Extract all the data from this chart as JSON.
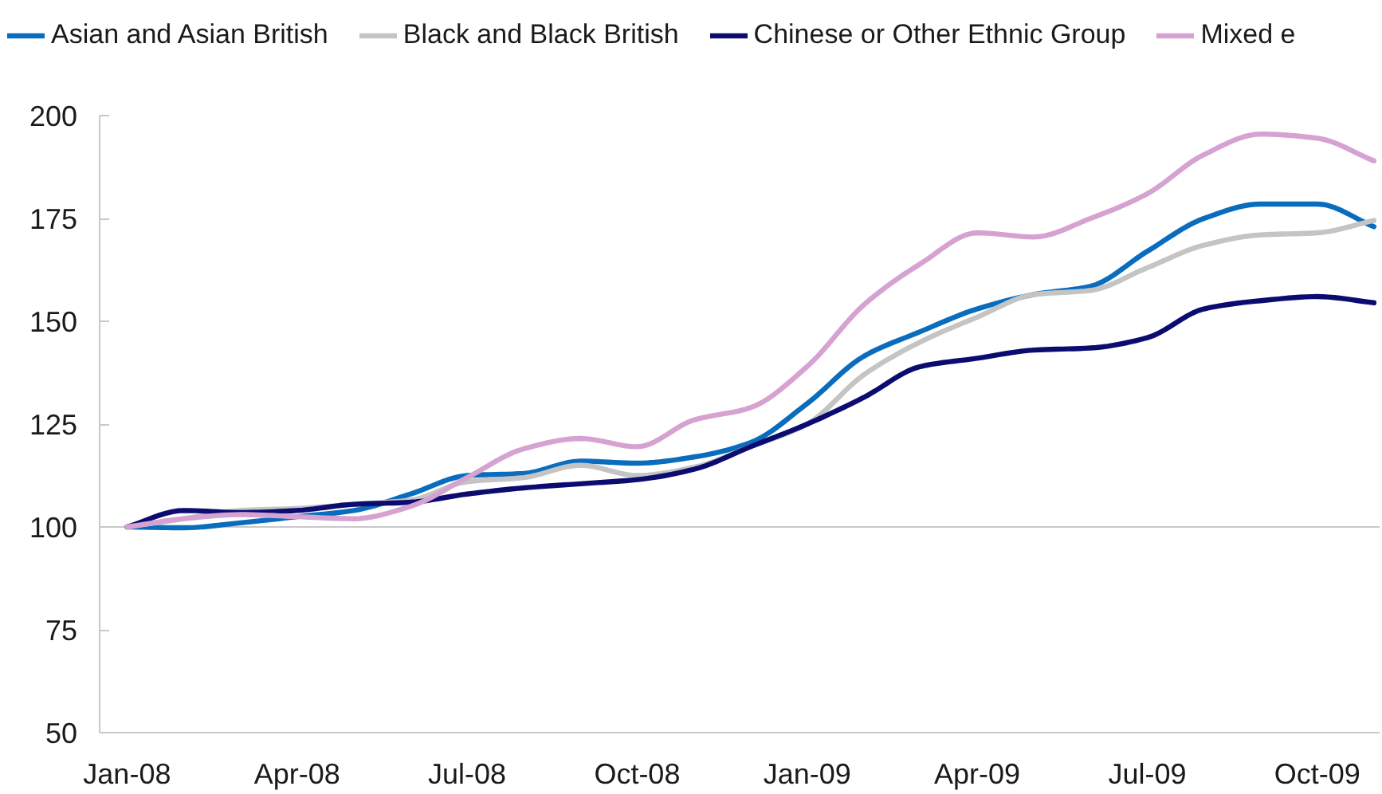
{
  "chart_data": {
    "type": "line",
    "x": [
      "2008-01",
      "2008-02",
      "2008-03",
      "2008-04",
      "2008-05",
      "2008-06",
      "2008-07",
      "2008-08",
      "2008-09",
      "2008-10",
      "2008-11",
      "2008-12",
      "2009-01",
      "2009-02",
      "2009-03",
      "2009-04",
      "2009-05",
      "2009-06",
      "2009-07",
      "2009-08",
      "2009-09",
      "2009-10",
      "2009-11"
    ],
    "series": [
      {
        "name": "Asian and Asian British",
        "color": "#0a6cbd",
        "values": [
          100,
          99.8,
          101,
          102.5,
          104,
          108,
          112.5,
          113,
          116,
          115.5,
          117,
          120.5,
          130,
          141.5,
          147.5,
          153,
          156.5,
          158.5,
          167,
          175,
          178.5,
          178.5,
          173
        ]
      },
      {
        "name": "Black and Black British",
        "color": "#c4c4c4",
        "values": [
          100,
          102,
          104,
          104.5,
          105.5,
          106.5,
          111,
          112,
          115,
          112.5,
          114.5,
          119.5,
          125,
          137,
          145,
          151,
          156.5,
          157.5,
          163,
          168.5,
          171,
          171.5,
          174.5
        ]
      },
      {
        "name": "Chinese or Other Ethnic Group",
        "color": "#0c0c70",
        "values": [
          100,
          104,
          103.5,
          104,
          105.5,
          106,
          108,
          109.5,
          110.5,
          111.5,
          114,
          119.5,
          125,
          131.5,
          139,
          141,
          143,
          143.5,
          146,
          153,
          155,
          156,
          154.5
        ]
      },
      {
        "name": "Mixed e",
        "color": "#d6a2d2",
        "values": [
          100,
          102,
          103,
          102.5,
          102,
          105,
          112,
          119,
          121.5,
          119.5,
          126,
          129,
          139,
          154,
          164,
          171.5,
          170.5,
          175,
          181,
          190.5,
          195.5,
          194.5,
          189
        ]
      }
    ],
    "xlim": [
      "2007-12-17",
      "2009-11-04"
    ],
    "xticks": [
      {
        "value": "2008-01",
        "label": "Jan-08"
      },
      {
        "value": "2008-04",
        "label": "Apr-08"
      },
      {
        "value": "2008-07",
        "label": "Jul-08"
      },
      {
        "value": "2008-10",
        "label": "Oct-08"
      },
      {
        "value": "2009-01",
        "label": "Jan-09"
      },
      {
        "value": "2009-04",
        "label": "Apr-09"
      },
      {
        "value": "2009-07",
        "label": "Jul-09"
      },
      {
        "value": "2009-10",
        "label": "Oct-09"
      }
    ],
    "ylim": [
      50,
      200
    ],
    "yticks": [
      50,
      75,
      100,
      125,
      150,
      175,
      200
    ],
    "ref_lines": [
      {
        "axis": "y",
        "value": 100,
        "color": "#c8c8c8"
      }
    ],
    "legend": "top",
    "grid": false,
    "marker": "none",
    "line_style": "solid"
  }
}
